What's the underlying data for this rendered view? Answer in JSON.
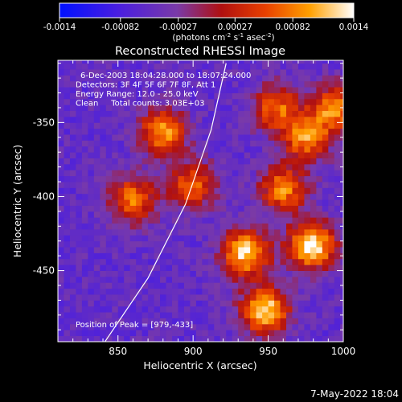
{
  "chart_data": {
    "type": "heatmap",
    "title": "Reconstructed RHESSI Image",
    "xlabel": "Heliocentric X (arcsec)",
    "ylabel": "Heliocentric Y (arcsec)",
    "xlim": [
      810,
      1000
    ],
    "ylim": [
      -498,
      -308
    ],
    "x_ticks": [
      850,
      900,
      950,
      1000
    ],
    "y_ticks": [
      -350,
      -400,
      -450
    ],
    "colorbar": {
      "range": [
        -0.0014,
        0.0014
      ],
      "ticks": [
        "-0.0014",
        "-0.00082",
        "-0.00027",
        "0.00027",
        "0.00082",
        "0.0014"
      ],
      "label": "(photons cm<sup>-2</sup> s<sup>-1</sup> asec<sup>-2</sup>)"
    },
    "info_lines": [
      "6-Dec-2003 18:04:28.000 to 18:07:24.000",
      "Detectors: 3F 4F 5F 6F 7F 8F, Att 1",
      "Energy Range: 12.0 - 25.0 keV",
      "Clean     Total counts: 3.03E+03"
    ],
    "peak_label": "Position of Peak = [979,-433]",
    "peak": [
      979,
      -433
    ],
    "sources": [
      {
        "x": 880,
        "y": -356,
        "value": 0.00095
      },
      {
        "x": 860,
        "y": -402,
        "value": 0.0008
      },
      {
        "x": 900,
        "y": -392,
        "value": 0.0007
      },
      {
        "x": 935,
        "y": -438,
        "value": 0.00125
      },
      {
        "x": 979,
        "y": -433,
        "value": 0.0014
      },
      {
        "x": 948,
        "y": -477,
        "value": 0.0013
      },
      {
        "x": 960,
        "y": -395,
        "value": 0.00085
      },
      {
        "x": 975,
        "y": -360,
        "value": 0.0009
      },
      {
        "x": 995,
        "y": -340,
        "value": 0.00095
      },
      {
        "x": 955,
        "y": -340,
        "value": 0.0007
      }
    ],
    "limb_curve": [
      [
        840,
        -500
      ],
      [
        870,
        -455
      ],
      [
        895,
        -405
      ],
      [
        912,
        -355
      ],
      [
        922,
        -310
      ]
    ]
  },
  "footer_date": "7-May-2022 18:04"
}
